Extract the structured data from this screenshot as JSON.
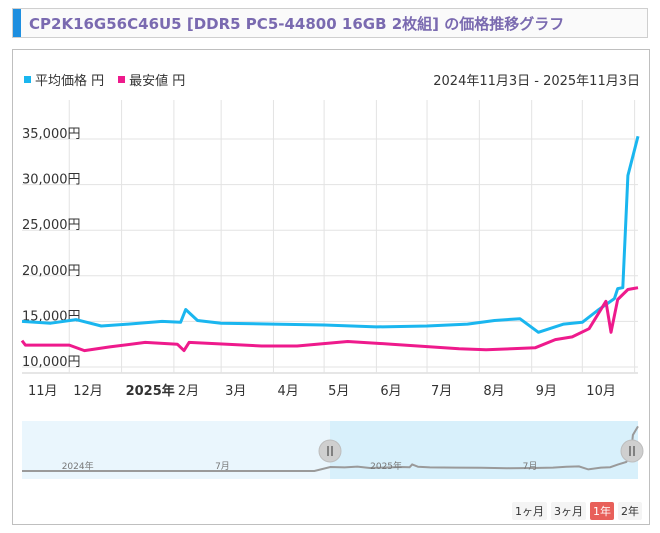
{
  "title": "CP2K16G56C46U5 [DDR5 PC5-44800 16GB 2枚組] の価格推移グラフ",
  "date_range": "2024年11月3日 - 2025年11月3日",
  "colors": {
    "avg": "#1ab6ef",
    "min": "#ee1a8c",
    "title_accent": "#1e8fe0",
    "active_button": "#e8605a"
  },
  "range_buttons": [
    "1ヶ月",
    "3ヶ月",
    "1年",
    "2年"
  ],
  "active_range": "1年",
  "navigator_labels": [
    "2024年",
    "7月",
    "2025年",
    "7月"
  ],
  "chart_data": {
    "type": "line",
    "y_tick_labels": [
      "10,000円",
      "15,000円",
      "20,000円",
      "25,000円",
      "30,000円",
      "35,000円"
    ],
    "ylim": [
      10000,
      35000
    ],
    "x_tick_labels": [
      "11月",
      "12月",
      "2025年",
      "2月",
      "3月",
      "4月",
      "5月",
      "6月",
      "7月",
      "8月",
      "9月",
      "10月"
    ],
    "series": [
      {
        "name": "平均価格 円",
        "x": [
          "2024-11-03",
          "2024-11-20",
          "2024-12-05",
          "2024-12-20",
          "2025-01-05",
          "2025-01-25",
          "2025-02-05",
          "2025-02-08",
          "2025-02-15",
          "2025-03-01",
          "2025-04-01",
          "2025-05-01",
          "2025-06-01",
          "2025-07-01",
          "2025-07-25",
          "2025-08-10",
          "2025-08-25",
          "2025-09-05",
          "2025-09-20",
          "2025-10-01",
          "2025-10-10",
          "2025-10-20",
          "2025-10-22",
          "2025-10-25",
          "2025-10-28",
          "2025-11-03"
        ],
        "values": [
          15000,
          14800,
          15200,
          14500,
          14700,
          15000,
          14900,
          16300,
          15100,
          14800,
          14700,
          14600,
          14400,
          14500,
          14700,
          15100,
          15300,
          13800,
          14700,
          14900,
          16200,
          17500,
          18600,
          18700,
          31000,
          35300
        ]
      },
      {
        "name": "最安値 円",
        "x": [
          "2024-11-03",
          "2024-11-05",
          "2024-12-01",
          "2024-12-10",
          "2024-12-25",
          "2025-01-15",
          "2025-02-03",
          "2025-02-07",
          "2025-02-10",
          "2025-03-25",
          "2025-04-15",
          "2025-05-15",
          "2025-06-10",
          "2025-07-20",
          "2025-08-05",
          "2025-08-20",
          "2025-09-03",
          "2025-09-15",
          "2025-09-25",
          "2025-10-05",
          "2025-10-15",
          "2025-10-18",
          "2025-10-22",
          "2025-10-28",
          "2025-11-03"
        ],
        "values": [
          12900,
          12400,
          12400,
          11800,
          12200,
          12700,
          12500,
          11800,
          12700,
          12300,
          12300,
          12800,
          12500,
          12000,
          11900,
          12000,
          12100,
          13000,
          13300,
          14200,
          17200,
          13800,
          17400,
          18500,
          18700
        ]
      }
    ]
  }
}
